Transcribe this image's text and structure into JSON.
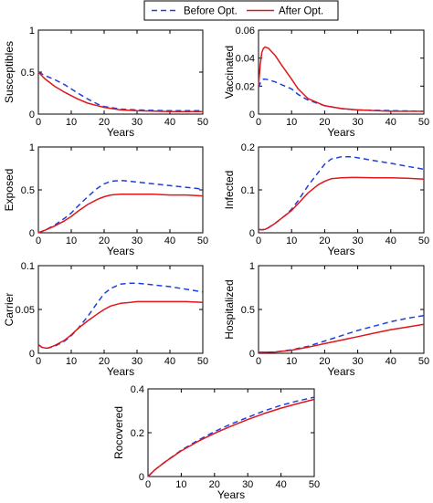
{
  "legend": {
    "placement": "top-center",
    "entries": [
      {
        "label": "Before Opt.",
        "color": "#1f3fdf",
        "style": "dashed"
      },
      {
        "label": "After Opt.",
        "color": "#e0161b",
        "style": "solid"
      }
    ]
  },
  "chart_data": [
    {
      "type": "line",
      "ylabel": "Susceptibles",
      "xlabel": "Years",
      "xlim": [
        0,
        50
      ],
      "ylim": [
        0,
        1
      ],
      "xticks": [
        "0",
        "10",
        "20",
        "30",
        "40",
        "50"
      ],
      "yticks": [
        "0",
        "0.5",
        "1"
      ],
      "x": [
        0,
        2,
        5,
        8,
        10,
        12,
        15,
        18,
        20,
        25,
        30,
        35,
        40,
        45,
        50
      ],
      "series": [
        {
          "name": "Before Opt.",
          "values": [
            0.5,
            0.46,
            0.41,
            0.35,
            0.3,
            0.25,
            0.18,
            0.12,
            0.09,
            0.06,
            0.05,
            0.045,
            0.04,
            0.04,
            0.04
          ]
        },
        {
          "name": "After Opt.",
          "values": [
            0.5,
            0.42,
            0.33,
            0.26,
            0.22,
            0.18,
            0.13,
            0.1,
            0.08,
            0.05,
            0.04,
            0.035,
            0.03,
            0.03,
            0.03
          ]
        }
      ]
    },
    {
      "type": "line",
      "ylabel": "Vaccinated",
      "xlabel": "Years",
      "xlim": [
        0,
        50
      ],
      "ylim": [
        0,
        0.06
      ],
      "xticks": [
        "0",
        "10",
        "20",
        "30",
        "40",
        "50"
      ],
      "yticks": [
        "0",
        "0.02",
        "0.04",
        "0.06"
      ],
      "x": [
        0,
        0.5,
        1,
        1.5,
        2,
        3,
        5,
        7,
        10,
        12,
        15,
        20,
        25,
        30,
        40,
        50
      ],
      "series": [
        {
          "name": "Before Opt.",
          "values": [
            0.019,
            0.022,
            0.024,
            0.025,
            0.025,
            0.0245,
            0.023,
            0.021,
            0.018,
            0.014,
            0.01,
            0.006,
            0.004,
            0.003,
            0.0025,
            0.002
          ]
        },
        {
          "name": "After Opt.",
          "values": [
            0.02,
            0.035,
            0.044,
            0.047,
            0.048,
            0.047,
            0.042,
            0.035,
            0.025,
            0.018,
            0.011,
            0.006,
            0.004,
            0.003,
            0.002,
            0.002
          ]
        }
      ]
    },
    {
      "type": "line",
      "ylabel": "Exposed",
      "xlabel": "Years",
      "xlim": [
        0,
        50
      ],
      "ylim": [
        0,
        1
      ],
      "xticks": [
        "0",
        "10",
        "20",
        "30",
        "40",
        "50"
      ],
      "yticks": [
        "0",
        "0.5",
        "1"
      ],
      "x": [
        0,
        2,
        5,
        8,
        10,
        12,
        15,
        18,
        20,
        22,
        25,
        28,
        30,
        35,
        40,
        45,
        50
      ],
      "series": [
        {
          "name": "Before Opt.",
          "values": [
            0,
            0.03,
            0.09,
            0.17,
            0.23,
            0.31,
            0.42,
            0.52,
            0.57,
            0.6,
            0.61,
            0.6,
            0.59,
            0.57,
            0.55,
            0.53,
            0.51
          ]
        },
        {
          "name": "After Opt.",
          "values": [
            0,
            0.03,
            0.08,
            0.14,
            0.19,
            0.25,
            0.33,
            0.39,
            0.42,
            0.44,
            0.45,
            0.45,
            0.45,
            0.45,
            0.44,
            0.44,
            0.43
          ]
        }
      ]
    },
    {
      "type": "line",
      "ylabel": "Infected",
      "xlabel": "Years",
      "xlim": [
        0,
        50
      ],
      "ylim": [
        0,
        0.2
      ],
      "xticks": [
        "0",
        "10",
        "20",
        "30",
        "40",
        "50"
      ],
      "yticks": [
        "0",
        "0.1",
        "0.2"
      ],
      "x": [
        0,
        1,
        2,
        3,
        5,
        8,
        10,
        12,
        15,
        18,
        20,
        22,
        25,
        28,
        30,
        35,
        40,
        45,
        50
      ],
      "series": [
        {
          "name": "Before Opt.",
          "values": [
            0.008,
            0.007,
            0.008,
            0.012,
            0.022,
            0.04,
            0.055,
            0.075,
            0.11,
            0.14,
            0.16,
            0.172,
            0.177,
            0.177,
            0.175,
            0.168,
            0.162,
            0.155,
            0.148
          ]
        },
        {
          "name": "After Opt.",
          "values": [
            0.008,
            0.007,
            0.008,
            0.012,
            0.022,
            0.04,
            0.052,
            0.068,
            0.093,
            0.112,
            0.12,
            0.126,
            0.128,
            0.129,
            0.129,
            0.128,
            0.128,
            0.127,
            0.125
          ]
        }
      ]
    },
    {
      "type": "line",
      "ylabel": "Carrier",
      "xlabel": "Years",
      "xlim": [
        0,
        50
      ],
      "ylim": [
        0,
        0.1
      ],
      "xticks": [
        "0",
        "10",
        "20",
        "30",
        "40",
        "50"
      ],
      "yticks": [
        "0",
        "0.05",
        "0.1"
      ],
      "x": [
        0,
        1,
        2,
        3,
        5,
        8,
        10,
        12,
        15,
        18,
        20,
        22,
        25,
        28,
        30,
        35,
        40,
        45,
        50
      ],
      "series": [
        {
          "name": "Before Opt.",
          "values": [
            0.01,
            0.007,
            0.006,
            0.006,
            0.008,
            0.014,
            0.02,
            0.028,
            0.042,
            0.058,
            0.068,
            0.074,
            0.079,
            0.08,
            0.08,
            0.078,
            0.076,
            0.073,
            0.07
          ]
        },
        {
          "name": "After Opt.",
          "values": [
            0.01,
            0.007,
            0.006,
            0.006,
            0.009,
            0.015,
            0.021,
            0.028,
            0.037,
            0.045,
            0.05,
            0.054,
            0.057,
            0.058,
            0.059,
            0.059,
            0.059,
            0.059,
            0.058
          ]
        }
      ]
    },
    {
      "type": "line",
      "ylabel": "Hospitalized",
      "xlabel": "Years",
      "xlim": [
        0,
        50
      ],
      "ylim": [
        0,
        1
      ],
      "xticks": [
        "0",
        "10",
        "20",
        "30",
        "40",
        "50"
      ],
      "yticks": [
        "0",
        "0.5",
        "1"
      ],
      "x": [
        0,
        5,
        10,
        15,
        20,
        25,
        30,
        35,
        40,
        45,
        50
      ],
      "series": [
        {
          "name": "Before Opt.",
          "values": [
            0.01,
            0.015,
            0.04,
            0.08,
            0.14,
            0.2,
            0.26,
            0.31,
            0.36,
            0.4,
            0.43
          ]
        },
        {
          "name": "After Opt.",
          "values": [
            0.01,
            0.015,
            0.035,
            0.07,
            0.11,
            0.15,
            0.19,
            0.23,
            0.27,
            0.3,
            0.33
          ]
        }
      ]
    },
    {
      "type": "line",
      "ylabel": "Rocovered",
      "xlabel": "Years",
      "xlim": [
        0,
        50
      ],
      "ylim": [
        0,
        0.4
      ],
      "xticks": [
        "0",
        "10",
        "20",
        "30",
        "40",
        "50"
      ],
      "yticks": [
        "0",
        "0.2",
        "0.4"
      ],
      "x": [
        0,
        2,
        5,
        10,
        15,
        20,
        25,
        30,
        35,
        40,
        45,
        50
      ],
      "series": [
        {
          "name": "Before Opt.",
          "values": [
            0,
            0.03,
            0.065,
            0.12,
            0.165,
            0.205,
            0.24,
            0.27,
            0.3,
            0.325,
            0.345,
            0.362
          ]
        },
        {
          "name": "After Opt.",
          "values": [
            0,
            0.03,
            0.065,
            0.117,
            0.16,
            0.197,
            0.23,
            0.26,
            0.288,
            0.312,
            0.333,
            0.352
          ]
        }
      ]
    }
  ]
}
